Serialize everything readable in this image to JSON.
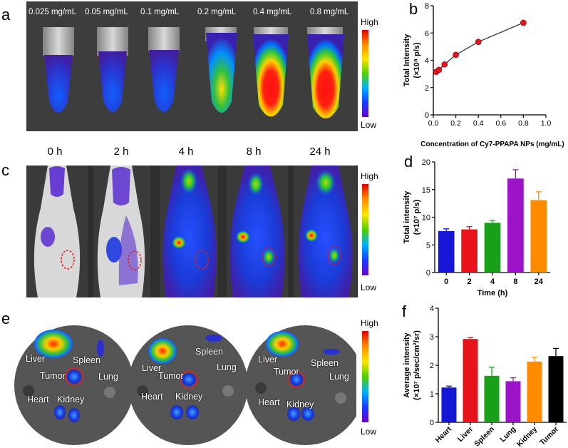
{
  "panel_letters": {
    "a": "a",
    "b": "b",
    "c": "c",
    "d": "d",
    "e": "e",
    "f": "f"
  },
  "colorbar": {
    "high": "High",
    "low": "Low"
  },
  "panel_a": {
    "concentrations": [
      "0.025 mg/mL",
      "0.05 mg/mL",
      "0.1 mg/mL",
      "0.2 mg/mL",
      "0.4 mg/mL",
      "0.8 mg/mL"
    ]
  },
  "panel_c": {
    "times": [
      "0 h",
      "2 h",
      "4 h",
      "8 h",
      "24 h"
    ]
  },
  "panel_e": {
    "organs": [
      "Liver",
      "Spleen",
      "Tumor",
      "Lung",
      "Heart",
      "Kidney"
    ]
  },
  "chart_data": [
    {
      "id": "b",
      "type": "line",
      "title": "",
      "xlabel": "Concentration of Cy7-PPAPA NPs (mg/mL)",
      "ylabel_line1": "Total Intensity",
      "ylabel_line2": "(×10⁸ p/s)",
      "x": [
        0.025,
        0.05,
        0.1,
        0.2,
        0.4,
        0.8
      ],
      "y": [
        3.15,
        3.3,
        3.7,
        4.4,
        5.35,
        6.75
      ],
      "xlim": [
        0,
        1.0
      ],
      "ylim": [
        0,
        8
      ],
      "xticks": [
        "0.0",
        "0.2",
        "0.4",
        "0.6",
        "0.8",
        "1.0"
      ],
      "yticks": [
        "0",
        "2",
        "4",
        "6",
        "8"
      ],
      "marker_color": "#e8141c"
    },
    {
      "id": "d",
      "type": "bar",
      "xlabel": "Time (h)",
      "ylabel_line1": "Total intensity",
      "ylabel_line2": "(×10⁷ p/s)",
      "categories": [
        "0",
        "2",
        "4",
        "8",
        "24"
      ],
      "values": [
        7.5,
        7.8,
        9.0,
        17.0,
        13.1
      ],
      "errors": [
        0.4,
        0.5,
        0.4,
        1.6,
        1.5
      ],
      "colors": [
        "#1616d6",
        "#e8141c",
        "#18a018",
        "#9b14c8",
        "#ff8c00"
      ],
      "ylim": [
        0,
        20
      ],
      "yticks": [
        "0",
        "5",
        "10",
        "15",
        "20"
      ]
    },
    {
      "id": "f",
      "type": "bar",
      "ylabel_line1": "Average intensity",
      "ylabel_line2": "(×10⁷ p/sec/cm²/sr)",
      "categories": [
        "Heart",
        "Liver",
        "Spleen",
        "Lung",
        "Kidney",
        "Tumor"
      ],
      "values": [
        1.22,
        2.92,
        1.63,
        1.44,
        2.13,
        2.32
      ],
      "errors": [
        0.05,
        0.05,
        0.3,
        0.12,
        0.15,
        0.27
      ],
      "colors": [
        "#1616d6",
        "#e8141c",
        "#18a018",
        "#9b14c8",
        "#ff8c00",
        "#000000"
      ],
      "ylim": [
        0,
        4
      ],
      "yticks": [
        "0",
        "1",
        "2",
        "3",
        "4"
      ]
    }
  ]
}
